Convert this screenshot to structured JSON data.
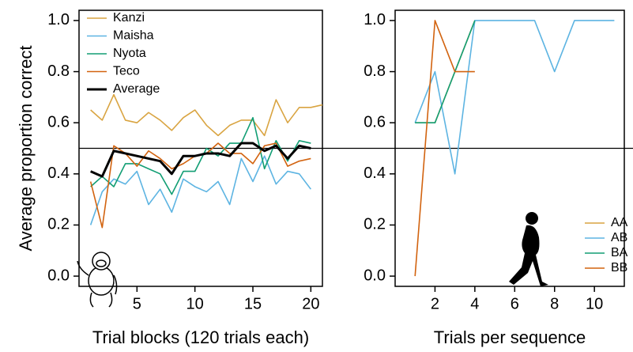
{
  "chart_data": [
    {
      "type": "line",
      "x_label": "Trial blocks (120 trials each)",
      "y_label": "Average proportion correct",
      "x": [
        1,
        2,
        3,
        4,
        5,
        6,
        7,
        8,
        9,
        10,
        11,
        12,
        13,
        14,
        15,
        16,
        17,
        18,
        19,
        20,
        21
      ],
      "series": [
        {
          "name": "Kanzi",
          "color": "#d9a441",
          "values": [
            0.65,
            0.61,
            0.71,
            0.61,
            0.6,
            0.64,
            0.61,
            0.57,
            0.62,
            0.65,
            0.59,
            0.55,
            0.59,
            0.61,
            0.61,
            0.55,
            0.69,
            0.6,
            0.66,
            0.66,
            0.67
          ]
        },
        {
          "name": "Maisha",
          "color": "#5db4e2",
          "values": [
            0.2,
            0.33,
            0.38,
            0.36,
            0.41,
            0.28,
            0.34,
            0.25,
            0.38,
            0.35,
            0.33,
            0.37,
            0.28,
            0.46,
            0.37,
            0.47,
            0.36,
            0.41,
            0.4,
            0.34,
            null
          ]
        },
        {
          "name": "Nyota",
          "color": "#129e74",
          "values": [
            0.35,
            0.39,
            0.35,
            0.44,
            0.44,
            0.42,
            0.4,
            0.32,
            0.41,
            0.41,
            0.5,
            0.47,
            0.52,
            0.52,
            0.62,
            0.42,
            0.53,
            0.45,
            0.53,
            0.52,
            null
          ]
        },
        {
          "name": "Teco",
          "color": "#d2630f",
          "values": [
            0.37,
            0.19,
            0.51,
            0.48,
            0.43,
            0.49,
            0.46,
            0.42,
            0.44,
            0.47,
            0.48,
            0.52,
            0.48,
            0.48,
            0.44,
            0.51,
            0.52,
            0.43,
            0.45,
            0.46,
            null
          ]
        },
        {
          "name": "Average",
          "color": "#000000",
          "width": 3,
          "values": [
            0.41,
            0.39,
            0.49,
            0.48,
            0.47,
            0.46,
            0.45,
            0.4,
            0.47,
            0.47,
            0.48,
            0.48,
            0.47,
            0.52,
            0.52,
            0.49,
            0.51,
            0.46,
            0.51,
            0.5,
            null
          ]
        }
      ],
      "hline": 0.5,
      "xlim": [
        0,
        21
      ],
      "ylim": [
        -0.04,
        1.04
      ],
      "xticks": [
        5,
        10,
        15,
        20
      ],
      "yticks": [
        {
          "value": 0,
          "label": "0.0"
        },
        0.2,
        0.4,
        0.6,
        0.8,
        {
          "value": 1,
          "label": "1.0"
        }
      ],
      "legend": "top-left"
    },
    {
      "type": "line",
      "x_label": "Trials per sequence",
      "x": [
        1,
        2,
        3,
        4,
        5,
        6,
        7,
        8,
        9,
        10,
        11
      ],
      "series": [
        {
          "name": "AA",
          "color": "#d9a441",
          "values": [
            0.6,
            0.6,
            0.8,
            1.0,
            null,
            null,
            null,
            null,
            null,
            null,
            null
          ]
        },
        {
          "name": "AB",
          "color": "#5db4e2",
          "values": [
            0.6,
            0.8,
            0.4,
            1.0,
            1.0,
            1.0,
            1.0,
            0.8,
            1.0,
            1.0,
            1.0
          ]
        },
        {
          "name": "BA",
          "color": "#129e74",
          "values": [
            0.6,
            0.6,
            0.8,
            1.0,
            null,
            null,
            null,
            null,
            null,
            null,
            null
          ]
        },
        {
          "name": "BB",
          "color": "#d2630f",
          "values": [
            0.0,
            1.0,
            0.8,
            0.8,
            null,
            null,
            null,
            null,
            null,
            null,
            null
          ]
        }
      ],
      "hline": 0.5,
      "xlim": [
        0,
        11.5
      ],
      "ylim": [
        -0.04,
        1.04
      ],
      "xticks": [
        2,
        4,
        6,
        8,
        10
      ],
      "yticks": [
        {
          "value": 0,
          "label": "0.0"
        },
        0.2,
        0.4,
        0.6,
        0.8,
        {
          "value": 1,
          "label": "1.0"
        }
      ],
      "legend": "bottom-right"
    }
  ]
}
